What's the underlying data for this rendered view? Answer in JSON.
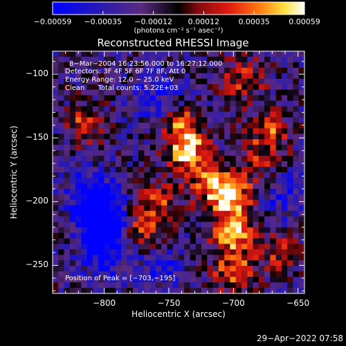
{
  "chart_data": {
    "type": "heatmap",
    "title": "Reconstructed RHESSI Image",
    "xlabel": "Heliocentric X (arcsec)",
    "ylabel": "Heliocentric Y (arcsec)",
    "xlim": [
      -840,
      -645
    ],
    "ylim": [
      -272,
      -82
    ],
    "x_ticks": [
      -800,
      -750,
      -700,
      -650
    ],
    "x_tick_labels": [
      "−800",
      "−750",
      "−700",
      "−650"
    ],
    "y_ticks": [
      -100,
      -150,
      -200,
      -250
    ],
    "y_tick_labels": [
      "−100",
      "−150",
      "−200",
      "−250"
    ],
    "colorbar": {
      "range": [
        -0.00059,
        0.00059
      ],
      "tick_labels": [
        "−0.00059",
        "−0.00035",
        "−0.00012",
        "0.00012",
        "0.00035",
        "0.00059"
      ],
      "unit_label": "(photons cm⁻² s⁻¹ asec⁻²)",
      "colormap": "blue-purple-red-yellow-white"
    },
    "annotations": [
      "8−Mar−2004 16:23:56.000 to 16:27:12.000",
      "Detectors: 3F 4F 5F 6F 7F 8F, Att 0",
      "Energy Range: 12.0 − 25.0 keV",
      "Clean      Total counts: 5.22E+03"
    ],
    "peak_label": "Position of Peak = [−703,−195]",
    "peak": {
      "x": -703,
      "y": -195
    },
    "bright_regions": [
      {
        "x": -740,
        "y": -140,
        "level": 0.65
      },
      {
        "x": -735,
        "y": -162,
        "level": 0.85
      },
      {
        "x": -720,
        "y": -185,
        "level": 0.55
      },
      {
        "x": -703,
        "y": -195,
        "level": 1.0
      },
      {
        "x": -700,
        "y": -225,
        "level": 0.8
      },
      {
        "x": -700,
        "y": -255,
        "level": 0.65
      },
      {
        "x": -758,
        "y": -200,
        "level": 0.5
      },
      {
        "x": -770,
        "y": -222,
        "level": 0.55
      },
      {
        "x": -692,
        "y": -105,
        "level": 0.5
      },
      {
        "x": -672,
        "y": -145,
        "level": 0.55
      },
      {
        "x": -815,
        "y": -140,
        "level": 0.5
      },
      {
        "x": -665,
        "y": -240,
        "level": 0.45
      },
      {
        "x": -680,
        "y": -170,
        "level": 0.4
      }
    ],
    "dark_regions": [
      {
        "x": -800,
        "y": -215,
        "level": 0.9
      },
      {
        "x": -810,
        "y": -195,
        "level": 0.8
      },
      {
        "x": -800,
        "y": -240,
        "level": 0.7
      },
      {
        "x": -760,
        "y": -120,
        "level": 0.5
      },
      {
        "x": -660,
        "y": -195,
        "level": 0.45
      },
      {
        "x": -755,
        "y": -250,
        "level": 0.4
      }
    ]
  },
  "footer": {
    "timestamp": "29−Apr−2022 07:58"
  }
}
